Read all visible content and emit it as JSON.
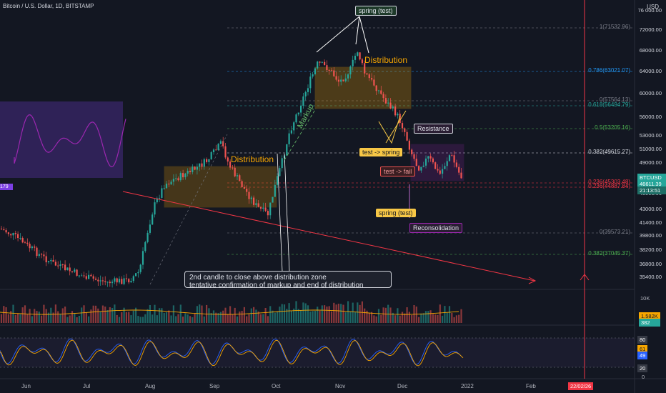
{
  "header": {
    "title": "Bitcoin / U.S. Dollar, 1D, BITSTAMP",
    "currency": "USD"
  },
  "price_scale": {
    "labels": [
      "76 000.00",
      "72000.00",
      "68000.00",
      "64000.00",
      "60000.00",
      "56000.00",
      "53000.00",
      "51000.00",
      "49000.00",
      "47000.00",
      "45000.00",
      "43000.00",
      "41400.00",
      "39800.00",
      "38200.00",
      "36800.00",
      "35400.00"
    ]
  },
  "fib_levels": [
    {
      "label": "1(71532.96)",
      "color": "#787b86"
    },
    {
      "label": "0.786(63021.07)",
      "color": "#2196f3"
    },
    {
      "label": "0(57564.13)",
      "color": "#787b86"
    },
    {
      "label": "0.618(56494.79)",
      "color": "#26a69a"
    },
    {
      "label": "0.5(53205.16)",
      "color": "#4caf50"
    },
    {
      "label": "0.382(49615.27)",
      "color": "#d1d4dc"
    },
    {
      "label": "0.236(45303.48)",
      "color": "#f23645"
    },
    {
      "label": "0.236(44887.84)",
      "color": "#f23645"
    },
    {
      "label": "0(39573.21)",
      "color": "#787b86"
    },
    {
      "label": "0.382(37045.37)",
      "color": "#4caf50"
    }
  ],
  "annotations": {
    "spring_test_top": "spring (test)",
    "distribution_right": "Distribution",
    "distribution_left": "Distribution",
    "markup": "Markup",
    "resistance": "Resistance",
    "test_spring": "test -> spring",
    "test_fail": "test -> fail",
    "spring_test_bottom": "spring (test)",
    "reconsolidation": "Reconsolidation",
    "note_line1": "2nd candle to close above distribution zone",
    "note_line2": "tentative confirmation of markup and end of distribution"
  },
  "tags": {
    "symbol": "BTCUSD",
    "price": "46611.39",
    "countdown": "21:13:51",
    "left_value": "179",
    "volume_top": "10K",
    "volume_value": "1.582K",
    "volume_value2": "382",
    "osc_80": "80",
    "osc_61": "61",
    "osc_49": "49",
    "osc_20": "20",
    "osc_0": "0"
  },
  "time_axis": {
    "months": [
      "Jun",
      "Jul",
      "Aug",
      "Sep",
      "Oct",
      "Nov",
      "Dec",
      "2022",
      "Feb"
    ],
    "date_marker": "22/02/26"
  },
  "colors": {
    "background": "#131722",
    "up": "#26a69a",
    "down": "#ef5350",
    "distribution_box": "#f7a600",
    "reconsolidation_box": "#9c27b0",
    "accent_red": "#f23645"
  }
}
